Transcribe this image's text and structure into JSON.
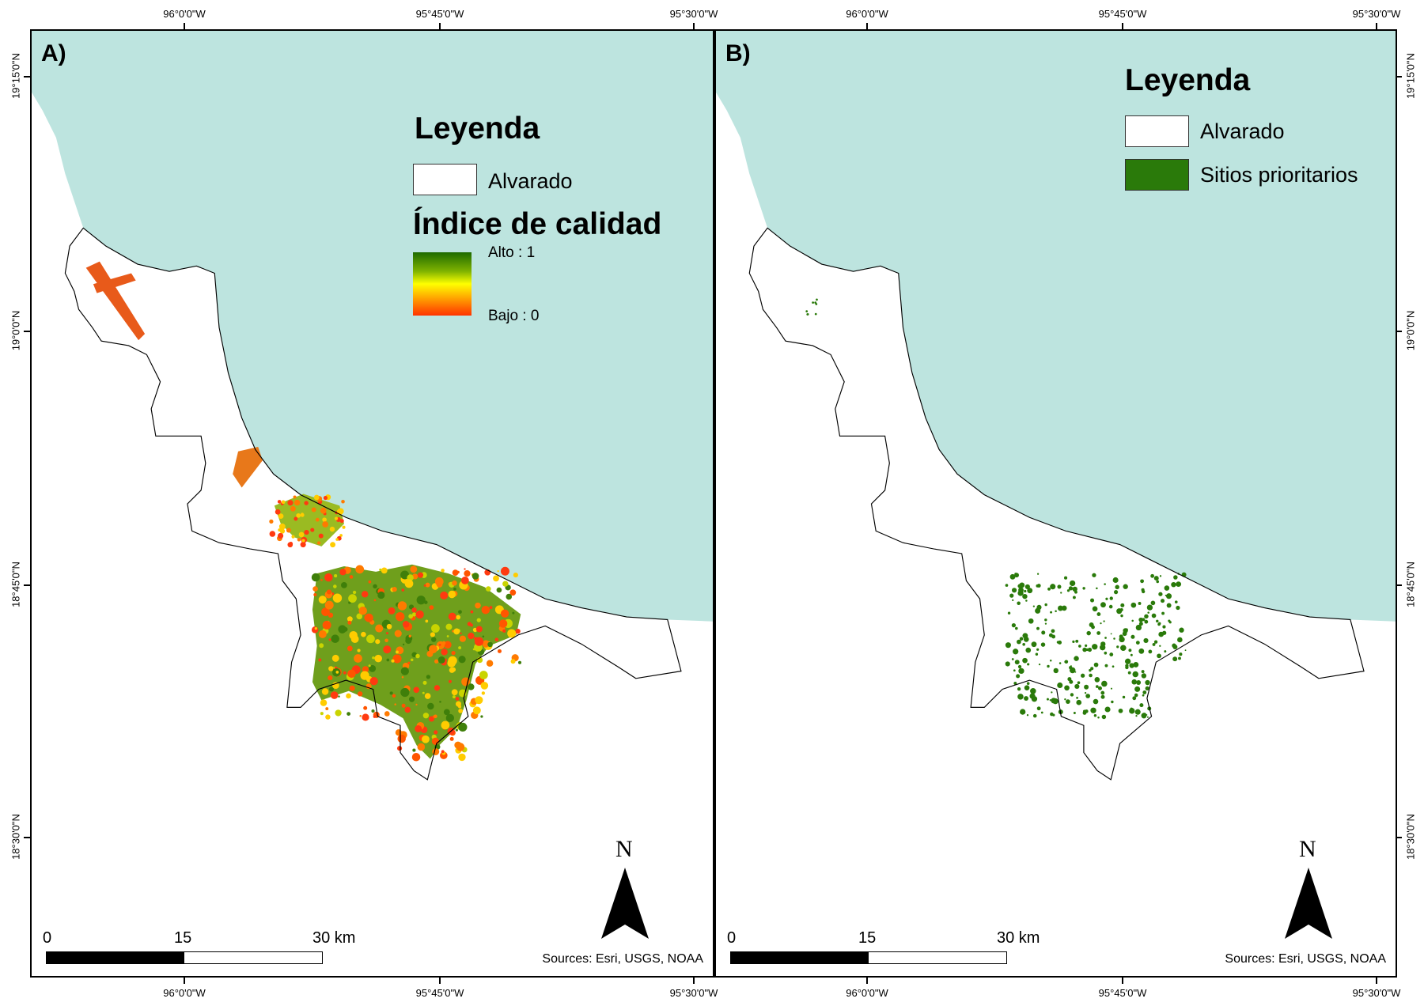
{
  "lon_ticks": [
    "96°0'0\"W",
    "95°45'0\"W",
    "95°30'0\"W"
  ],
  "lat_ticks": [
    "19°15'0\"N",
    "19°0'0\"N",
    "18°45'0\"N",
    "18°30'0\"N"
  ],
  "panels": [
    {
      "label": "A)",
      "legend": {
        "title": "Leyenda",
        "boundary": "Alvarado",
        "index_title": "Índice de calidad",
        "high": "Alto : 1",
        "low": "Bajo : 0"
      }
    },
    {
      "label": "B)",
      "legend": {
        "title": "Leyenda",
        "boundary": "Alvarado",
        "priority": "Sitios prioritarios"
      }
    }
  ],
  "north": "N",
  "scale": {
    "zero": "0",
    "mid": "15",
    "end": "30 km"
  },
  "sources": "Sources: Esri, USGS, NOAA",
  "colors": {
    "sea": "#bde4df",
    "priority": "#2a7a0a",
    "high": "#1e6b00",
    "low": "#ff3300"
  }
}
